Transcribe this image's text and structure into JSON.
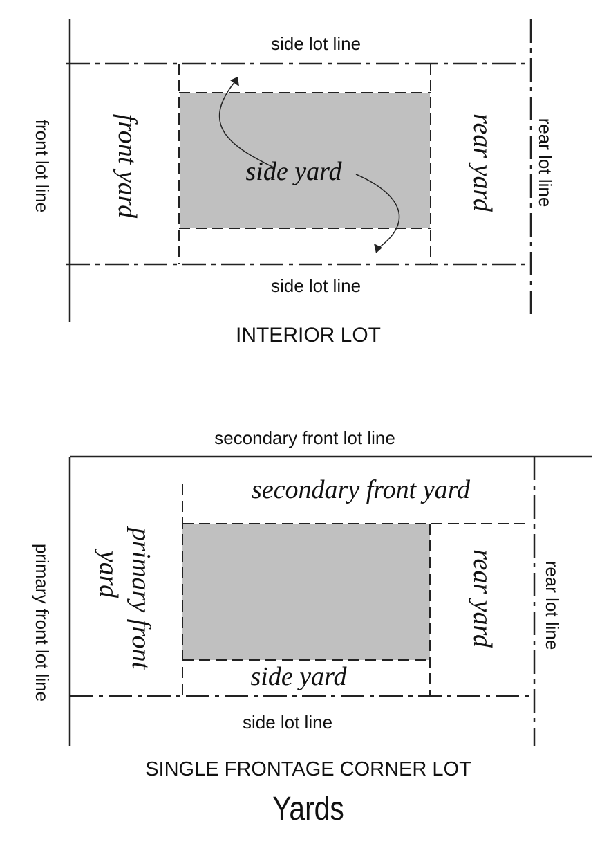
{
  "interior_lot": {
    "top_side_lot_line": "side lot line",
    "bottom_side_lot_line": "side lot line",
    "front_lot_line": "front lot line",
    "rear_lot_line": "rear lot line",
    "front_yard": "front yard",
    "rear_yard": "rear yard",
    "side_yard": "side yard",
    "caption": "INTERIOR LOT"
  },
  "corner_lot": {
    "secondary_front_lot_line": "secondary front lot line",
    "secondary_front_yard": "secondary front yard",
    "primary_front_yard_line1": "primary front",
    "primary_front_yard_line2": "yard",
    "primary_front_lot_line": "primary front lot line",
    "rear_yard": "rear yard",
    "rear_lot_line": "rear lot line",
    "side_yard": "side yard",
    "side_lot_line": "side lot line",
    "caption": "SINGLE FRONTAGE CORNER LOT"
  },
  "title": "Yards",
  "colors": {
    "building": "#c0c0c0",
    "lines": "#222222"
  }
}
